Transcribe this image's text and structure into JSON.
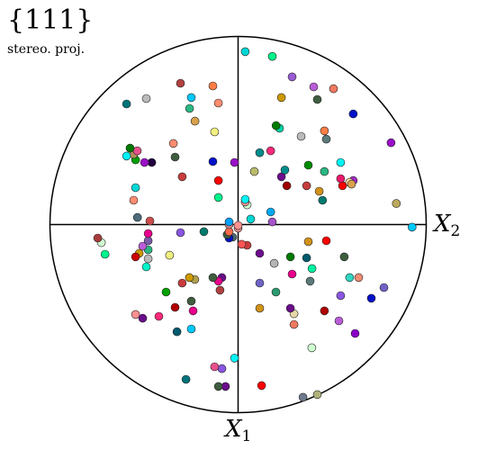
{
  "figure": {
    "title": "{111}",
    "subtitle": "stereo. proj.",
    "axis_x2_label": "X",
    "axis_x2_sub": "2",
    "axis_x1_label": "X",
    "axis_x1_sub": "1"
  },
  "chart_data": {
    "type": "scatter",
    "title": "{111}",
    "subtitle": "stereo. proj.",
    "axes": [
      "X1 (down)",
      "X2 (right)"
    ],
    "xlim": [
      -1,
      1
    ],
    "ylim": [
      -1,
      1
    ],
    "points": [
      {
        "x": -0.014,
        "y": 0.925,
        "c": "#00c8ff"
      },
      {
        "x": 0.112,
        "y": 0.841,
        "c": "#bba85b"
      },
      {
        "x": 0.435,
        "y": 0.813,
        "c": "#9a0fc8"
      },
      {
        "x": -0.335,
        "y": 0.775,
        "c": "#6e63c6"
      },
      {
        "x": -0.392,
        "y": 0.708,
        "c": "#0011c8"
      },
      {
        "x": -0.282,
        "y": 0.641,
        "c": "#f08c72"
      },
      {
        "x": -0.579,
        "y": 0.622,
        "c": "#8c00c8"
      },
      {
        "x": -0.282,
        "y": 0.593,
        "c": "#30d6c2"
      },
      {
        "x": 0.234,
        "y": 0.612,
        "c": "#a52ac8"
      },
      {
        "x": 0.224,
        "y": 0.593,
        "c": "#ffdfaa"
      },
      {
        "x": 0.215,
        "y": 0.603,
        "c": "#d8a24d"
      },
      {
        "x": 0.588,
        "y": 0.612,
        "c": "#0011c8"
      },
      {
        "x": -0.172,
        "y": 0.564,
        "c": "#3f5d3f"
      },
      {
        "x": -0.512,
        "y": 0.536,
        "c": "#b95cd6"
      },
      {
        "x": -0.378,
        "y": 0.545,
        "c": "#8a56e0"
      },
      {
        "x": 0.206,
        "y": 0.555,
        "c": "#ff0000"
      },
      {
        "x": 0.244,
        "y": 0.545,
        "c": "#e81a6e"
      },
      {
        "x": 0.33,
        "y": 0.545,
        "c": "#00f4f4"
      },
      {
        "x": 0.722,
        "y": 0.507,
        "c": "#ee7a62"
      },
      {
        "x": -0.904,
        "y": 0.421,
        "c": "#b0b07a"
      },
      {
        "x": -0.459,
        "y": 0.459,
        "c": "#b00000"
      },
      {
        "x": -0.086,
        "y": 0.469,
        "c": "#ff0000"
      },
      {
        "x": 0.129,
        "y": 0.449,
        "c": "#007a6e"
      },
      {
        "x": 0.177,
        "y": 0.431,
        "c": "#d1921a"
      },
      {
        "x": 0.282,
        "y": 0.459,
        "c": "#2ab882"
      },
      {
        "x": 0.454,
        "y": 0.469,
        "c": "#5c7a7a"
      },
      {
        "x": 0.498,
        "y": 0.459,
        "c": "#ff7d46"
      },
      {
        "x": 0.665,
        "y": 0.421,
        "c": "#3f5d3f"
      },
      {
        "x": 0.732,
        "y": 0.402,
        "c": "#b95cd6"
      },
      {
        "x": -0.655,
        "y": 0.392,
        "c": "#cfffd1"
      },
      {
        "x": -0.301,
        "y": 0.383,
        "c": "#5c7a7a"
      },
      {
        "x": -0.234,
        "y": 0.393,
        "c": "#00f4a0"
      },
      {
        "x": -0.177,
        "y": 0.364,
        "c": "#005a6e"
      },
      {
        "x": -0.091,
        "y": 0.373,
        "c": "#d1921a"
      },
      {
        "x": -0.918,
        "y": 0.345,
        "c": "#6e7a8c"
      },
      {
        "x": 0.316,
        "y": 0.373,
        "c": "#008c00"
      },
      {
        "x": 0.206,
        "y": 0.364,
        "c": "#c83c3c"
      },
      {
        "x": 0.469,
        "y": 0.335,
        "c": "#bababa"
      },
      {
        "x": -0.531,
        "y": 0.297,
        "c": "#ee7a62"
      },
      {
        "x": -0.474,
        "y": 0.297,
        "c": "#e6d8aa"
      },
      {
        "x": -0.445,
        "y": 0.278,
        "c": "#6a0e8c"
      },
      {
        "x": -0.263,
        "y": 0.287,
        "c": "#e8008c"
      },
      {
        "x": -0.172,
        "y": 0.278,
        "c": "#007a00"
      },
      {
        "x": 0.206,
        "y": 0.259,
        "c": "#a00000"
      },
      {
        "x": 0.254,
        "y": 0.23,
        "c": "#6a0e8c"
      },
      {
        "x": 0.29,
        "y": 0.249,
        "c": "#008c8c"
      },
      {
        "x": 0.785,
        "y": 0.287,
        "c": "#9a5bd6"
      },
      {
        "x": 0.512,
        "y": 0.22,
        "c": "#00d6a6"
      },
      {
        "x": 0.526,
        "y": 0.202,
        "c": "#007a00"
      },
      {
        "x": 0.675,
        "y": 0.23,
        "c": "#cc9900"
      },
      {
        "x": -0.359,
        "y": 0.201,
        "c": "#2a9a6e"
      },
      {
        "x": -0.206,
        "y": 0.192,
        "c": "#b5b5b5"
      },
      {
        "x": 0.014,
        "y": 0.182,
        "c": "#a552c8"
      },
      {
        "x": 0.067,
        "y": 0.173,
        "c": "#00a8f0"
      },
      {
        "x": 0.392,
        "y": 0.173,
        "c": "#ff2a7a"
      },
      {
        "x": 0.894,
        "y": 0.182,
        "c": "#00f48c"
      },
      {
        "x": -0.856,
        "y": 0.125,
        "c": "#ff0000"
      },
      {
        "x": -0.445,
        "y": 0.115,
        "c": "#d1921a"
      },
      {
        "x": -0.311,
        "y": 0.115,
        "c": "#6e63c6"
      },
      {
        "x": -0.153,
        "y": 0.115,
        "c": "#6a0e8c"
      },
      {
        "x": 0.382,
        "y": 0.115,
        "c": "#008c8c"
      },
      {
        "x": 0.282,
        "y": 0.086,
        "c": "#bbbb6e"
      },
      {
        "x": -0.11,
        "y": 0.048,
        "c": "#c83c3c"
      },
      {
        "x": 0.029,
        "y": 0.067,
        "c": "#00d6d6"
      },
      {
        "x": 0.105,
        "y": 0.048,
        "c": "#cfffd1"
      },
      {
        "x": 0.12,
        "y": 0.038,
        "c": "#ff9999"
      },
      {
        "x": 0.134,
        "y": 0.038,
        "c": "#00f4f4"
      },
      {
        "x": 0.919,
        "y": 0.038,
        "c": "#00d6d6"
      },
      {
        "x": -0.105,
        "y": 0.019,
        "c": "#ff5454"
      },
      {
        "x": -0.019,
        "y": 0.0,
        "c": "#d68a8a"
      },
      {
        "x": -0.005,
        "y": 0.0,
        "c": "#ff9090"
      },
      {
        "x": -0.71,
        "y": -0.019,
        "c": "#00f4f4"
      },
      {
        "x": -0.067,
        "y": -0.029,
        "c": "#4c6a6a"
      },
      {
        "x": -0.072,
        "y": -0.048,
        "c": "#0011c8"
      },
      {
        "x": -0.053,
        "y": -0.058,
        "c": "#3f5d3f"
      },
      {
        "x": -0.038,
        "y": -0.048,
        "c": "#ff6a4c"
      },
      {
        "x": 0.0,
        "y": -0.048,
        "c": "#d68a8a"
      },
      {
        "x": 0.014,
        "y": -0.048,
        "c": "#00a0ff"
      },
      {
        "x": 0.33,
        "y": -0.019,
        "c": "#9a0fc8"
      },
      {
        "x": -0.861,
        "y": -0.067,
        "c": "#6a0e8c"
      },
      {
        "x": -0.861,
        "y": -0.105,
        "c": "#3f5d3f"
      },
      {
        "x": -0.766,
        "y": -0.086,
        "c": "#8a56e0"
      },
      {
        "x": -0.756,
        "y": -0.125,
        "c": "#e8508c"
      },
      {
        "x": -0.349,
        "y": -0.096,
        "c": "#b04040"
      },
      {
        "x": -0.282,
        "y": -0.086,
        "c": "#6a0e8c"
      },
      {
        "x": -0.301,
        "y": -0.105,
        "c": "#e8008c"
      },
      {
        "x": -0.282,
        "y": -0.134,
        "c": "#3f5d3f"
      },
      {
        "x": 0.144,
        "y": -0.105,
        "c": "#00f48c"
      },
      {
        "x": 0.234,
        "y": -0.105,
        "c": "#ff0000"
      },
      {
        "x": 0.335,
        "y": -0.134,
        "c": "#0011c8"
      },
      {
        "x": 0.493,
        "y": -0.125,
        "c": "#f0f080"
      },
      {
        "x": 0.646,
        "y": -0.105,
        "c": "#ff8c70"
      },
      {
        "x": 0.737,
        "y": -0.134,
        "c": "#ff7d46"
      },
      {
        "x": -0.038,
        "y": -0.182,
        "c": "#007a6e"
      },
      {
        "x": -0.292,
        "y": -0.23,
        "c": "#b0a050"
      },
      {
        "x": -0.282,
        "y": -0.259,
        "c": "#cc9900"
      },
      {
        "x": -0.311,
        "y": -0.297,
        "c": "#c83c3c"
      },
      {
        "x": -0.555,
        "y": -0.249,
        "c": "#00c8ff"
      },
      {
        "x": -0.459,
        "y": -0.239,
        "c": "#e8008c"
      },
      {
        "x": -0.407,
        "y": -0.249,
        "c": "#3f5d3f"
      },
      {
        "x": -0.823,
        "y": -0.277,
        "c": "#00727a"
      },
      {
        "x": -0.57,
        "y": -0.325,
        "c": "#005a6e"
      },
      {
        "x": -0.44,
        "y": -0.335,
        "c": "#b00000"
      },
      {
        "x": -0.359,
        "y": -0.383,
        "c": "#00a000"
      },
      {
        "x": -0.163,
        "y": -0.364,
        "c": "#f0f080"
      },
      {
        "x": -0.043,
        "y": -0.306,
        "c": "#8a56e0"
      },
      {
        "x": 0.254,
        "y": -0.297,
        "c": "#c83c3c"
      },
      {
        "x": 0.359,
        "y": -0.335,
        "c": "#3f5d3f"
      },
      {
        "x": 0.431,
        "y": -0.344,
        "c": "#ff8c70"
      },
      {
        "x": 0.55,
        "y": -0.229,
        "c": "#d8a24d"
      },
      {
        "x": 0.617,
        "y": -0.258,
        "c": "#2ab882"
      },
      {
        "x": 0.675,
        "y": -0.249,
        "c": "#00c8ff"
      },
      {
        "x": 0.751,
        "y": -0.306,
        "c": "#b04040"
      },
      {
        "x": -0.488,
        "y": -0.421,
        "c": "#ff2a7a"
      },
      {
        "x": -0.498,
        "y": -0.507,
        "c": "#6a0e8c"
      },
      {
        "x": -0.478,
        "y": -0.545,
        "c": "#ff9090"
      },
      {
        "x": -0.225,
        "y": -0.488,
        "c": "#00f4c8"
      },
      {
        "x": -0.182,
        "y": -0.478,
        "c": "#bababa"
      },
      {
        "x": -0.134,
        "y": -0.478,
        "c": "#2ab882"
      },
      {
        "x": -0.115,
        "y": -0.507,
        "c": "#b95cd6"
      },
      {
        "x": -0.153,
        "y": -0.526,
        "c": "#cc9900"
      },
      {
        "x": -0.172,
        "y": -0.545,
        "c": "#cc0000"
      },
      {
        "x": -0.086,
        "y": -0.478,
        "c": "#7a5aaa"
      },
      {
        "x": -0.048,
        "y": -0.478,
        "c": "#e8008c"
      },
      {
        "x": 0.019,
        "y": -0.469,
        "c": "#cc4c4c"
      },
      {
        "x": 0.038,
        "y": -0.535,
        "c": "#4c6a7a"
      },
      {
        "x": 0.129,
        "y": -0.555,
        "c": "#ff8c70"
      },
      {
        "x": 0.196,
        "y": -0.545,
        "c": "#00d6d6"
      },
      {
        "x": 0.33,
        "y": -0.459,
        "c": "#220040"
      },
      {
        "x": 0.33,
        "y": -0.497,
        "c": "#9a0fc8"
      },
      {
        "x": 0.344,
        "y": -0.545,
        "c": "#00a000"
      },
      {
        "x": 0.373,
        "y": -0.555,
        "c": "#b08c5a"
      },
      {
        "x": 0.392,
        "y": -0.536,
        "c": "#e8508c"
      },
      {
        "x": 0.406,
        "y": -0.574,
        "c": "#007a00"
      },
      {
        "x": 0.67,
        "y": -0.488,
        "c": "#bababa"
      },
      {
        "x": 0.364,
        "y": -0.593,
        "c": "#00f4f4"
      },
      {
        "x": 0.641,
        "y": -0.593,
        "c": "#00727a"
      },
      {
        "x": -0.158,
        "y": -0.707,
        "c": "#00f48c"
      },
      {
        "x": -0.096,
        "y": -0.727,
        "c": "#d1ffd1"
      },
      {
        "x": -0.072,
        "y": -0.746,
        "c": "#a83c3c"
      }
    ]
  }
}
